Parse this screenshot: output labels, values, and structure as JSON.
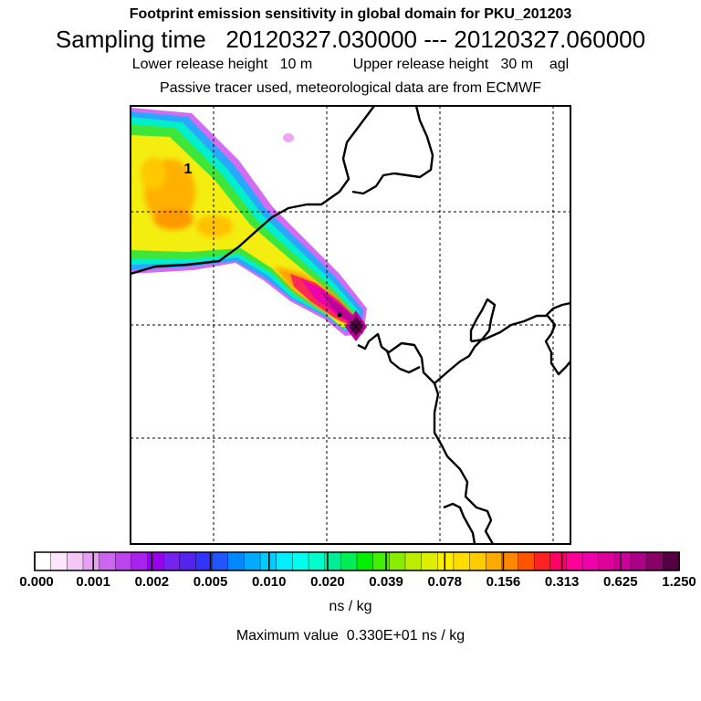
{
  "header": {
    "title": "Footprint emission sensitivity in global domain for PKU_201203",
    "sampling": "Sampling time   20120327.030000 --- 20120327.060000",
    "release": "Lower release height   10 m          Upper release height   30 m    agl",
    "tracer": "Passive tracer used, meteorological data are from ECMWF"
  },
  "map": {
    "contour_label": "1"
  },
  "colorbar": {
    "tick_labels": [
      "0.000",
      "0.001",
      "0.002",
      "0.005",
      "0.010",
      "0.020",
      "0.039",
      "0.078",
      "0.156",
      "0.313",
      "0.625",
      "1.250"
    ],
    "colors": [
      "#ffffff",
      "#fbe6fb",
      "#f3c8f5",
      "#e5a0ef",
      "#cc66ee",
      "#bb44ee",
      "#aa22ee",
      "#9900ee",
      "#7722ee",
      "#5522ee",
      "#3333ff",
      "#2255ff",
      "#0088ff",
      "#00aaff",
      "#00ccff",
      "#00eeff",
      "#00ffee",
      "#00ffcc",
      "#00ee99",
      "#00ee55",
      "#00ee00",
      "#44ee00",
      "#88ee00",
      "#bbee00",
      "#ddee00",
      "#ffee00",
      "#ffdd00",
      "#ffcc00",
      "#ffaa00",
      "#ff8800",
      "#ff5500",
      "#ff2222",
      "#ff0066",
      "#ff0099",
      "#ee00aa",
      "#dd0099",
      "#cc0099",
      "#aa0088",
      "#880066",
      "#550044"
    ],
    "units": "ns / kg"
  },
  "footer": {
    "max_value": "Maximum value  0.330E+01 ns / kg"
  }
}
